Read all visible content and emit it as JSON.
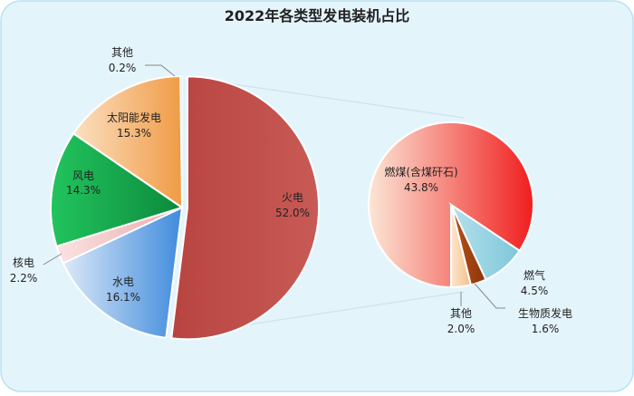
{
  "chart_data": {
    "type": "pie",
    "title": "2022年各类型发电装机占比",
    "main": {
      "slices": [
        {
          "label": "火电",
          "value": 52.0,
          "display": "52.0%"
        },
        {
          "label": "水电",
          "value": 16.1,
          "display": "16.1%"
        },
        {
          "label": "核电",
          "value": 2.2,
          "display": "2.2%"
        },
        {
          "label": "风电",
          "value": 14.3,
          "display": "14.3%"
        },
        {
          "label": "太阳能发电",
          "value": 15.3,
          "display": "15.3%"
        },
        {
          "label": "其他",
          "value": 0.2,
          "display": "0.2%"
        }
      ]
    },
    "breakdown": {
      "parent": "火电",
      "slices": [
        {
          "label": "燃煤(含煤矸石)",
          "value": 43.8,
          "display": "43.8%"
        },
        {
          "label": "燃气",
          "value": 4.5,
          "display": "4.5%"
        },
        {
          "label": "生物质发电",
          "value": 1.6,
          "display": "1.6%"
        },
        {
          "label": "其他",
          "value": 2.0,
          "display": "2.0%"
        }
      ]
    },
    "colors": {
      "火电": "#c0504d",
      "水电": "#5b9bd5",
      "核电": "#f2c4c4",
      "风电": "#1ba84f",
      "太阳能发电": "#f3a355",
      "其他": "#d9d9d9",
      "燃煤(含煤矸石)": "#f0302c",
      "燃气": "#8ccfe0",
      "生物质发电": "#a0410f",
      "其他(火电)": "#f7cfa7",
      "background": "#e4f4fb",
      "panel_border": "#b9e2f2"
    }
  }
}
